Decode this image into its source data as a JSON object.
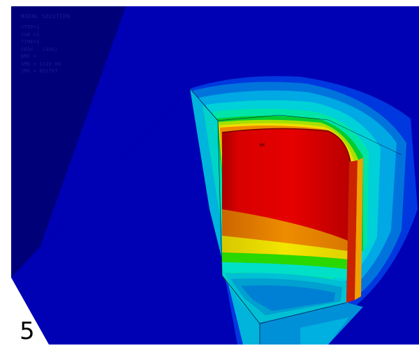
{
  "result": {
    "title": "NODAL SOLUTION",
    "lines": [
      "STEP=1",
      "SUB =1",
      "TIME=1",
      "SEQV   (AVG)",
      "DMX =",
      "SMN =.111E-06",
      "SMX =.001787"
    ]
  },
  "frame_number": "5",
  "max_label": "MX",
  "colors": {
    "background": "#00007a",
    "outer_plane": "#0000b8",
    "contour_scale": [
      "#0000ff",
      "#0060dd",
      "#00a4e6",
      "#00d0d8",
      "#00e6b0",
      "#00d838",
      "#9ee400",
      "#f0e400",
      "#f08c00",
      "#dc3c00",
      "#d40000"
    ]
  }
}
